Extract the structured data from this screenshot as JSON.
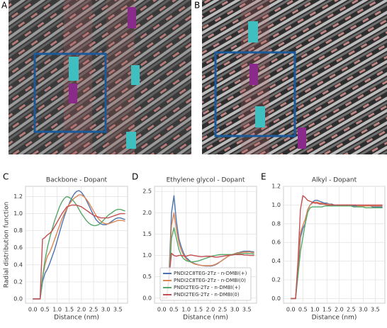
{
  "images": [
    {
      "label": "A"
    },
    {
      "label": "B"
    }
  ],
  "chart_data": [
    {
      "type": "line",
      "panel": "C",
      "title": "Backbone - Dopant",
      "xlabel": "Distance (nm)",
      "ylabel": "Radial distribution function",
      "x": [
        0.0,
        0.1,
        0.2,
        0.3,
        0.4,
        0.5,
        0.6,
        0.7,
        0.8,
        0.9,
        1.0,
        1.1,
        1.2,
        1.3,
        1.4,
        1.5,
        1.6,
        1.7,
        1.8,
        1.9,
        2.0,
        2.1,
        2.2,
        2.3,
        2.4,
        2.5,
        2.6,
        2.7,
        2.8,
        2.9,
        3.0,
        3.1,
        3.2,
        3.3,
        3.4,
        3.5,
        3.6,
        3.7,
        3.8
      ],
      "xlim": [
        -0.3,
        3.9
      ],
      "xticks": [
        {
          "value": 0,
          "label": "0.0"
        },
        {
          "value": 0.5,
          "label": "0.5"
        },
        {
          "value": 1,
          "label": "1.0"
        },
        {
          "value": 1.5,
          "label": "1.5"
        },
        {
          "value": 2,
          "label": "2.0"
        },
        {
          "value": 2.5,
          "label": "2.5"
        },
        {
          "value": 3,
          "label": "3.0"
        },
        {
          "value": 3.5,
          "label": "3.5"
        }
      ],
      "ylim": [
        -0.05,
        1.32
      ],
      "yticks": [
        {
          "value": 0,
          "label": "0.0"
        },
        {
          "value": 0.2,
          "label": "0.2"
        },
        {
          "value": 0.4,
          "label": "0.4"
        },
        {
          "value": 0.6,
          "label": "0.6"
        },
        {
          "value": 0.8,
          "label": "0.8"
        },
        {
          "value": 1,
          "label": "1.0"
        },
        {
          "value": 1.2,
          "label": "1.2"
        }
      ],
      "grid": true,
      "series": [
        {
          "color": "#4c72b0",
          "values": [
            0,
            0,
            0,
            0,
            0.2,
            0.3,
            0.35,
            0.42,
            0.5,
            0.58,
            0.68,
            0.78,
            0.88,
            0.97,
            1.05,
            1.12,
            1.18,
            1.23,
            1.26,
            1.27,
            1.25,
            1.21,
            1.16,
            1.1,
            1.04,
            0.98,
            0.93,
            0.9,
            0.88,
            0.87,
            0.87,
            0.88,
            0.9,
            0.92,
            0.94,
            0.95,
            0.95,
            0.94,
            0.93
          ]
        },
        {
          "color": "#dd8452",
          "values": [
            0,
            0,
            0,
            0,
            0.25,
            0.4,
            0.5,
            0.55,
            0.62,
            0.7,
            0.78,
            0.86,
            0.94,
            1.0,
            1.06,
            1.11,
            1.15,
            1.18,
            1.2,
            1.22,
            1.22,
            1.2,
            1.17,
            1.13,
            1.08,
            1.03,
            0.98,
            0.94,
            0.91,
            0.89,
            0.88,
            0.88,
            0.89,
            0.9,
            0.91,
            0.92,
            0.92,
            0.92,
            0.91
          ]
        },
        {
          "color": "#55a868",
          "values": [
            0,
            0,
            0,
            0,
            0.25,
            0.45,
            0.6,
            0.72,
            0.82,
            0.92,
            1.0,
            1.08,
            1.14,
            1.18,
            1.2,
            1.19,
            1.17,
            1.14,
            1.1,
            1.05,
            1.0,
            0.96,
            0.92,
            0.89,
            0.87,
            0.86,
            0.86,
            0.87,
            0.89,
            0.92,
            0.95,
            0.98,
            1.0,
            1.02,
            1.04,
            1.05,
            1.05,
            1.04,
            1.03
          ]
        },
        {
          "color": "#c44e52",
          "values": [
            0,
            0,
            0,
            0,
            0.7,
            0.72,
            0.75,
            0.77,
            0.8,
            0.85,
            0.9,
            0.95,
            1.0,
            1.04,
            1.08,
            1.09,
            1.1,
            1.1,
            1.1,
            1.09,
            1.08,
            1.06,
            1.04,
            1.02,
            1.0,
            0.98,
            0.97,
            0.96,
            0.95,
            0.95,
            0.95,
            0.95,
            0.96,
            0.97,
            0.98,
            0.99,
            1.0,
            1.0,
            1.0
          ]
        }
      ]
    },
    {
      "type": "line",
      "panel": "D",
      "title": "Ethylene glycol - Dopant",
      "xlabel": "Distance (nm)",
      "x": [
        0.0,
        0.1,
        0.2,
        0.3,
        0.4,
        0.5,
        0.6,
        0.7,
        0.8,
        0.9,
        1.0,
        1.1,
        1.2,
        1.3,
        1.4,
        1.5,
        1.6,
        1.7,
        1.8,
        1.9,
        2.0,
        2.1,
        2.2,
        2.3,
        2.4,
        2.5,
        2.6,
        2.7,
        2.8,
        2.9,
        3.0,
        3.1,
        3.2,
        3.3,
        3.4,
        3.5,
        3.6,
        3.7,
        3.8
      ],
      "xlim": [
        -0.3,
        3.9
      ],
      "xticks": [
        {
          "value": 0,
          "label": "0.0"
        },
        {
          "value": 0.5,
          "label": "0.5"
        },
        {
          "value": 1,
          "label": "1.0"
        },
        {
          "value": 1.5,
          "label": "1.5"
        },
        {
          "value": 2,
          "label": "2.0"
        },
        {
          "value": 2.5,
          "label": "2.5"
        },
        {
          "value": 3,
          "label": "3.0"
        },
        {
          "value": 3.5,
          "label": "3.5"
        }
      ],
      "ylim": [
        -0.12,
        2.62
      ],
      "yticks": [
        {
          "value": 0,
          "label": "0.0"
        },
        {
          "value": 0.5,
          "label": "0.5"
        },
        {
          "value": 1,
          "label": "1.0"
        },
        {
          "value": 1.5,
          "label": "1.5"
        },
        {
          "value": 2,
          "label": "2.0"
        },
        {
          "value": 2.5,
          "label": "2.5"
        }
      ],
      "grid": true,
      "legend": "lower center",
      "series": [
        {
          "name": "PNDI2C8TEG-2Tz - n-DMBI(+)",
          "color": "#4c72b0",
          "values": [
            0,
            0,
            0,
            0.6,
            2.0,
            2.4,
            1.8,
            1.4,
            1.2,
            1.05,
            0.95,
            0.9,
            0.85,
            0.82,
            0.8,
            0.78,
            0.77,
            0.76,
            0.75,
            0.75,
            0.75,
            0.76,
            0.78,
            0.81,
            0.85,
            0.89,
            0.93,
            0.97,
            1.0,
            1.02,
            1.04,
            1.06,
            1.07,
            1.09,
            1.1,
            1.1,
            1.1,
            1.09,
            1.08
          ]
        },
        {
          "name": "PNDI2C8TEG-2Tz - n-DMBI(0)",
          "color": "#dd8452",
          "values": [
            0,
            0,
            0,
            0.5,
            1.7,
            2.0,
            1.6,
            1.3,
            1.12,
            1.0,
            0.92,
            0.87,
            0.84,
            0.81,
            0.79,
            0.78,
            0.77,
            0.76,
            0.76,
            0.76,
            0.76,
            0.77,
            0.79,
            0.82,
            0.85,
            0.89,
            0.93,
            0.97,
            1.0,
            1.02,
            1.04,
            1.05,
            1.06,
            1.07,
            1.08,
            1.08,
            1.08,
            1.07,
            1.06
          ]
        },
        {
          "name": "PNDI2TEG-2Tz - n-DMBI(+)",
          "color": "#55a868",
          "values": [
            0,
            0,
            0,
            0.4,
            1.4,
            1.65,
            1.4,
            1.15,
            1.0,
            0.92,
            0.88,
            0.86,
            0.85,
            0.85,
            0.86,
            0.87,
            0.89,
            0.91,
            0.93,
            0.95,
            0.97,
            0.99,
            1.0,
            1.01,
            1.02,
            1.02,
            1.02,
            1.02,
            1.02,
            1.02,
            1.03,
            1.03,
            1.04,
            1.04,
            1.05,
            1.05,
            1.04,
            1.04,
            1.03
          ]
        },
        {
          "name": "PNDI2TEG-2Tz - n-DMBI(0)",
          "color": "#c44e52",
          "values": [
            0,
            0,
            0,
            0.5,
            1.05,
            1.0,
            0.98,
            1.0,
            1.0,
            0.99,
            0.98,
            1.0,
            1.01,
            1.0,
            0.99,
            0.98,
            0.97,
            0.97,
            0.98,
            0.98,
            0.98,
            0.97,
            0.96,
            0.96,
            0.97,
            0.98,
            0.99,
            1.0,
            1.01,
            1.01,
            1.02,
            1.02,
            1.02,
            1.02,
            1.01,
            1.01,
            1.0,
            1.0,
            1.0
          ]
        }
      ]
    },
    {
      "type": "line",
      "panel": "E",
      "title": "Alkyl - Dopant",
      "xlabel": "Distance (nm)",
      "x": [
        0.0,
        0.1,
        0.2,
        0.3,
        0.4,
        0.5,
        0.6,
        0.7,
        0.8,
        0.9,
        1.0,
        1.1,
        1.2,
        1.3,
        1.4,
        1.5,
        1.6,
        1.7,
        1.8,
        1.9,
        2.0,
        2.1,
        2.2,
        2.3,
        2.4,
        2.5,
        2.6,
        2.7,
        2.8,
        2.9,
        3.0,
        3.1,
        3.2,
        3.3,
        3.4,
        3.5,
        3.6,
        3.7,
        3.8
      ],
      "xlim": [
        -0.3,
        3.9
      ],
      "xticks": [
        {
          "value": 0,
          "label": "0.0"
        },
        {
          "value": 0.5,
          "label": "0.5"
        },
        {
          "value": 1,
          "label": "1.0"
        },
        {
          "value": 1.5,
          "label": "1.5"
        },
        {
          "value": 2,
          "label": "2.0"
        },
        {
          "value": 2.5,
          "label": "2.5"
        },
        {
          "value": 3,
          "label": "3.0"
        },
        {
          "value": 3.5,
          "label": "3.5"
        }
      ],
      "ylim": [
        -0.05,
        1.2
      ],
      "yticks": [
        {
          "value": 0,
          "label": "0.0"
        },
        {
          "value": 0.2,
          "label": "0.2"
        },
        {
          "value": 0.4,
          "label": "0.4"
        },
        {
          "value": 0.6,
          "label": "0.6"
        },
        {
          "value": 0.8,
          "label": "0.8"
        },
        {
          "value": 1,
          "label": "1.0"
        },
        {
          "value": 1.2,
          "label": "1.2"
        }
      ],
      "grid": true,
      "series": [
        {
          "color": "#4c72b0",
          "values": [
            0,
            0,
            0,
            0.3,
            0.65,
            0.75,
            0.8,
            0.95,
            1.0,
            1.03,
            1.05,
            1.05,
            1.04,
            1.03,
            1.02,
            1.02,
            1.01,
            1.01,
            1.0,
            1.0,
            1.0,
            1.0,
            1.0,
            1.0,
            1.0,
            1.0,
            0.99,
            0.99,
            0.99,
            0.99,
            0.99,
            0.99,
            0.99,
            0.99,
            0.98,
            0.98,
            0.98,
            0.98,
            0.98
          ]
        },
        {
          "color": "#dd8452",
          "values": [
            0,
            0,
            0,
            0.35,
            0.7,
            0.78,
            0.85,
            0.95,
            1.0,
            1.02,
            1.03,
            1.03,
            1.02,
            1.02,
            1.01,
            1.01,
            1.01,
            1.0,
            1.0,
            1.0,
            1.0,
            1.0,
            1.0,
            1.0,
            1.0,
            1.0,
            1.0,
            1.0,
            0.99,
            0.99,
            0.99,
            0.99,
            0.99,
            0.99,
            0.99,
            0.99,
            0.99,
            0.99,
            0.99
          ]
        },
        {
          "color": "#55a868",
          "values": [
            0,
            0,
            0,
            0.25,
            0.5,
            0.65,
            0.8,
            0.92,
            0.97,
            0.98,
            0.98,
            0.98,
            0.98,
            0.98,
            0.99,
            0.99,
            0.99,
            0.99,
            0.99,
            0.99,
            0.99,
            0.99,
            0.99,
            0.99,
            0.99,
            0.99,
            0.98,
            0.98,
            0.98,
            0.98,
            0.98,
            0.97,
            0.97,
            0.97,
            0.97,
            0.97,
            0.97,
            0.97,
            0.97
          ]
        },
        {
          "color": "#c44e52",
          "values": [
            0,
            0,
            0,
            0.4,
            0.95,
            1.1,
            1.08,
            1.05,
            1.04,
            1.03,
            1.02,
            1.02,
            1.01,
            1.01,
            1.01,
            1.0,
            1.0,
            1.0,
            1.0,
            1.0,
            1.0,
            1.0,
            1.0,
            1.0,
            1.0,
            1.0,
            1.0,
            1.0,
            1.0,
            1.0,
            1.0,
            1.0,
            1.0,
            1.0,
            1.0,
            1.0,
            1.0,
            1.0,
            1.0
          ]
        }
      ]
    }
  ]
}
